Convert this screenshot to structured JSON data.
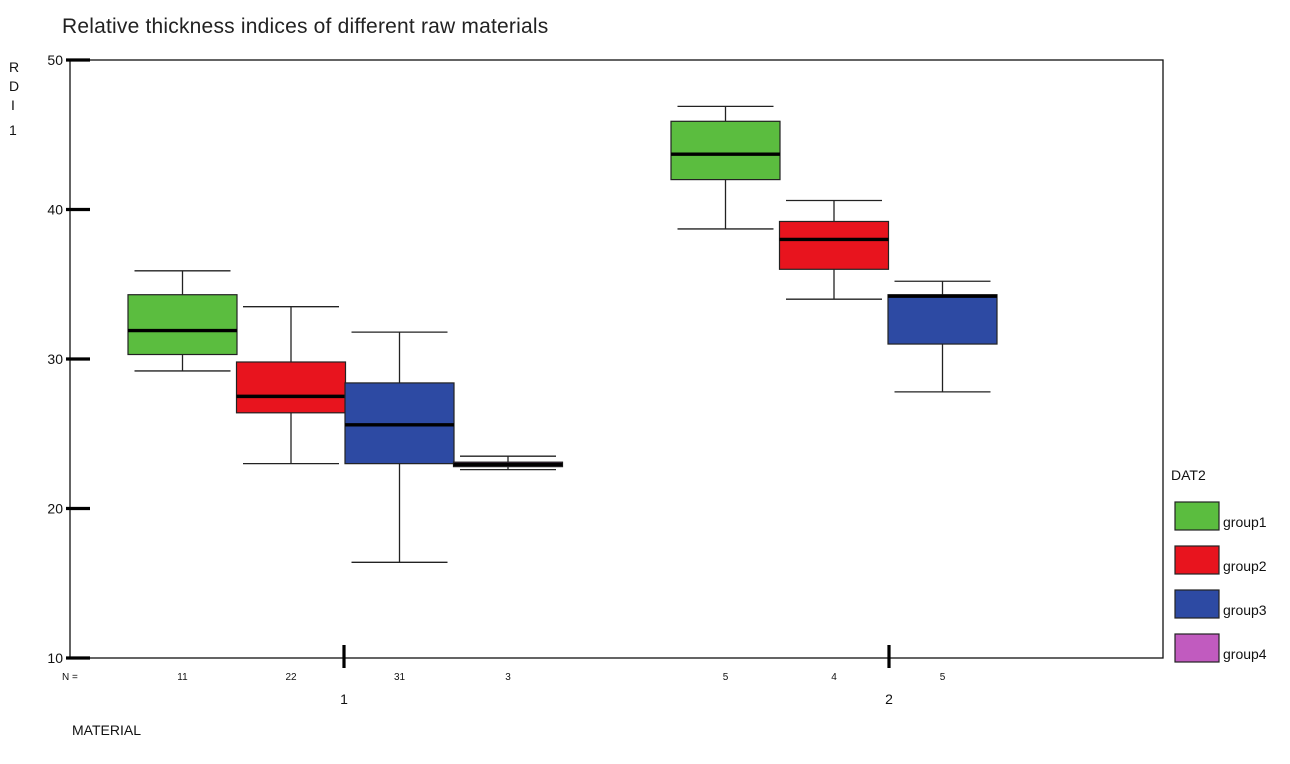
{
  "chart_data": {
    "type": "boxplot",
    "title": "Relative thickness indices of different raw materials",
    "ylabel_letters": [
      "R",
      "D",
      "I",
      "1"
    ],
    "xlabel": "MATERIAL",
    "n_label": "N =",
    "ylim": [
      10,
      50
    ],
    "yticks": [
      10,
      20,
      30,
      40,
      50
    ],
    "categories": [
      "1",
      "2"
    ],
    "legend_title": "DAT2",
    "legend_position": "right",
    "grid": false,
    "series": [
      {
        "name": "group1",
        "color": "#5bbd3f"
      },
      {
        "name": "group2",
        "color": "#e8141e"
      },
      {
        "name": "group3",
        "color": "#2d4aa3"
      },
      {
        "name": "group4",
        "color": "#c15bbf"
      }
    ],
    "boxes": [
      {
        "category": "1",
        "group": "group1",
        "n": "11",
        "min": 29.2,
        "q1": 30.3,
        "median": 31.9,
        "q3": 34.3,
        "max": 35.9
      },
      {
        "category": "1",
        "group": "group2",
        "n": "22",
        "min": 23.0,
        "q1": 26.4,
        "median": 27.5,
        "q3": 29.8,
        "max": 33.5
      },
      {
        "category": "1",
        "group": "group3",
        "n": "31",
        "min": 16.4,
        "q1": 23.0,
        "median": 25.6,
        "q3": 28.4,
        "max": 31.8
      },
      {
        "category": "1",
        "group": "group4",
        "n": "3",
        "min": 22.6,
        "q1": 22.8,
        "median": 22.95,
        "q3": 23.1,
        "max": 23.5
      },
      {
        "category": "2",
        "group": "group1",
        "n": "5",
        "min": 38.7,
        "q1": 42.0,
        "median": 43.7,
        "q3": 45.9,
        "max": 46.9
      },
      {
        "category": "2",
        "group": "group2",
        "n": "4",
        "min": 34.0,
        "q1": 36.0,
        "median": 38.0,
        "q3": 39.2,
        "max": 40.6
      },
      {
        "category": "2",
        "group": "group3",
        "n": "5",
        "min": 27.8,
        "q1": 31.0,
        "median": 34.2,
        "q3": 34.3,
        "max": 35.2
      }
    ]
  }
}
